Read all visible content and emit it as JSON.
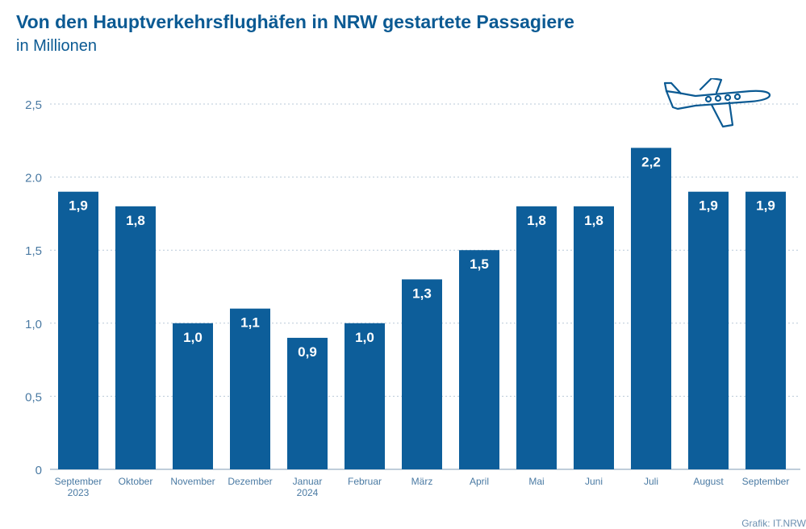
{
  "header": {
    "title": "Von den Hauptverkehrsflughäfen in NRW gestartete Passagiere",
    "subtitle": "in Millionen"
  },
  "source": "Grafik: IT.NRW",
  "icons": {
    "decoration": "airplane-icon"
  },
  "colors": {
    "bar": "#0d5e9a",
    "text": "#0b5a93",
    "grid": "#b9c9d8",
    "axis_text": "#4a7aa3"
  },
  "chart_data": {
    "type": "bar",
    "categories": [
      [
        "September",
        "2023"
      ],
      [
        "Oktober"
      ],
      [
        "November"
      ],
      [
        "Dezember"
      ],
      [
        "Januar",
        "2024"
      ],
      [
        "Februar"
      ],
      [
        "März"
      ],
      [
        "April"
      ],
      [
        "Mai"
      ],
      [
        "Juni"
      ],
      [
        "Juli"
      ],
      [
        "August"
      ],
      [
        "September"
      ]
    ],
    "values": [
      1.9,
      1.8,
      1.0,
      1.1,
      0.9,
      1.0,
      1.3,
      1.5,
      1.8,
      1.8,
      2.2,
      1.9,
      1.9
    ],
    "value_labels": [
      "1,9",
      "1,8",
      "1,0",
      "1,1",
      "0,9",
      "1,0",
      "1,3",
      "1,5",
      "1,8",
      "1,8",
      "2,2",
      "1,9",
      "1,9"
    ],
    "yticks": [
      0,
      0.5,
      1.0,
      1.5,
      2.0,
      2.5
    ],
    "ytick_labels": [
      "0",
      "0,5",
      "1,0",
      "1,5",
      "2.0",
      "2,5"
    ],
    "ylim": [
      0,
      2.5
    ],
    "grid": true,
    "legend": "none"
  }
}
